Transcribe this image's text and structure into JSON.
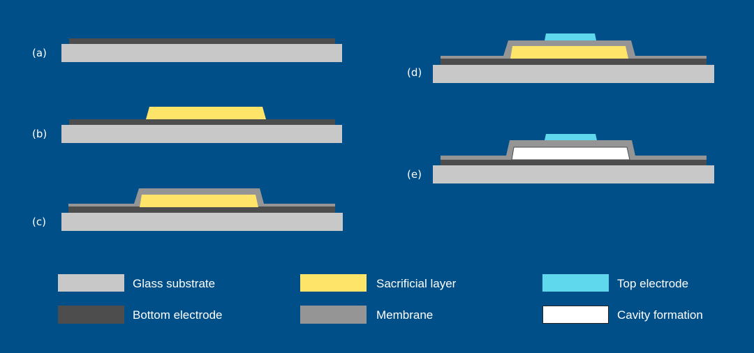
{
  "steps": [
    {
      "label": "(a)"
    },
    {
      "label": "(b)"
    },
    {
      "label": "(c)"
    },
    {
      "label": "(d)"
    },
    {
      "label": "(e)"
    }
  ],
  "legend": [
    {
      "label": "Glass substrate",
      "color": "#c8c8c8"
    },
    {
      "label": "Bottom electrode",
      "color": "#4d4d4d"
    },
    {
      "label": "Sacrificial layer",
      "color": "#ffe46a"
    },
    {
      "label": "Membrane",
      "color": "#959595"
    },
    {
      "label": "Top electrode",
      "color": "#5fd8ee"
    },
    {
      "label": "Cavity formation",
      "color": "#ffffff"
    }
  ],
  "colors": {
    "background": "#004f88"
  }
}
